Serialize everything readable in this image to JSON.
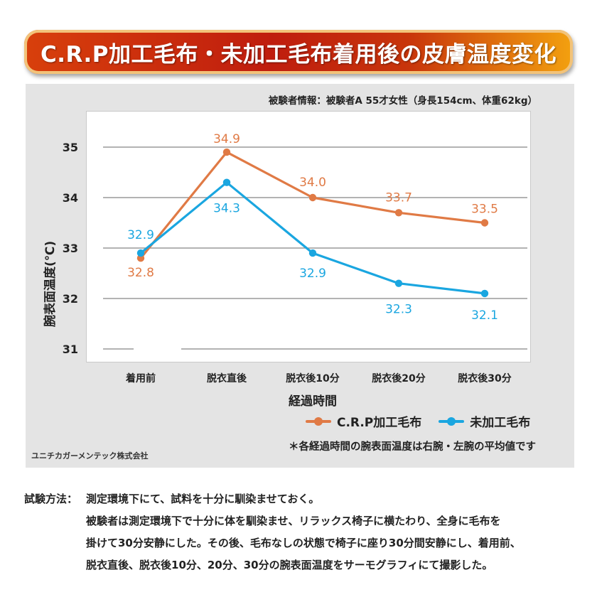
{
  "title": "C.R.P加工毛布・未加工毛布着用後の皮膚温度変化",
  "subject_info": "被験者情報：被験者A 55才女性（身長154cm、体重62kg）",
  "company": "ユニチカガーメンテック株式会社",
  "note": "＊各経過時間の腕表面温度は右腕・左腕の平均値です",
  "colors": {
    "crp": "#e07a45",
    "untreated": "#1aa6e0",
    "banner": "#c8280e",
    "grid": "#9a9a9a"
  },
  "chart_data": {
    "type": "line",
    "categories": [
      "着用前",
      "脱衣直後",
      "脱衣後10分",
      "脱衣後20分",
      "脱衣後30分"
    ],
    "series": [
      {
        "name": "C.R.P加工毛布",
        "values": [
          32.8,
          34.9,
          34.0,
          33.7,
          33.5
        ]
      },
      {
        "name": "未加工毛布",
        "values": [
          32.9,
          34.3,
          32.9,
          32.3,
          32.1
        ]
      }
    ],
    "data_labels": [
      [
        "32.8",
        "34.9",
        "34.0",
        "33.7",
        "33.5"
      ],
      [
        "32.9",
        "34.3",
        "32.9",
        "32.3",
        "32.1"
      ]
    ],
    "yticks": [
      "31",
      "32",
      "33",
      "34",
      "35"
    ],
    "ylim": [
      31,
      35.4
    ],
    "xlabel": "経過時間",
    "ylabel": "腕表面温度(℃)",
    "grid": true,
    "legend_position": "bottom-right"
  },
  "method": {
    "label": "試験方法：",
    "lines": [
      "測定環境下にて、試料を十分に馴染ませておく。",
      "被験者は測定環境下で十分に体を馴染ませ、リラックス椅子に横たわり、全身に毛布を",
      "掛けて30分安静にした。その後、毛布なしの状態で椅子に座り30分間安静にし、着用前、",
      "脱衣直後、脱衣後10分、20分、30分の腕表面温度をサーモグラフィにて撮影した。"
    ]
  }
}
